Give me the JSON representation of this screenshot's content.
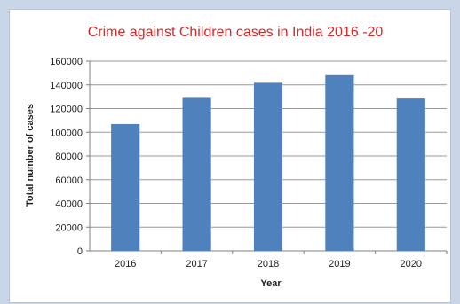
{
  "chart_data": {
    "type": "bar",
    "title": "Crime against Children cases in India 2016  -20",
    "xlabel": "Year",
    "ylabel": "Total number of cases",
    "categories": [
      "2016",
      "2017",
      "2018",
      "2019",
      "2020"
    ],
    "values": [
      106958,
      129032,
      141764,
      148185,
      128531
    ],
    "ylim": [
      0,
      160000
    ],
    "yticks": [
      "0",
      "20000",
      "40000",
      "60000",
      "80000",
      "100000",
      "120000",
      "140000",
      "160000"
    ],
    "grid": true,
    "legend": "none",
    "colors": {
      "bar": "#4f81bd",
      "title": "#d42a2a"
    }
  }
}
